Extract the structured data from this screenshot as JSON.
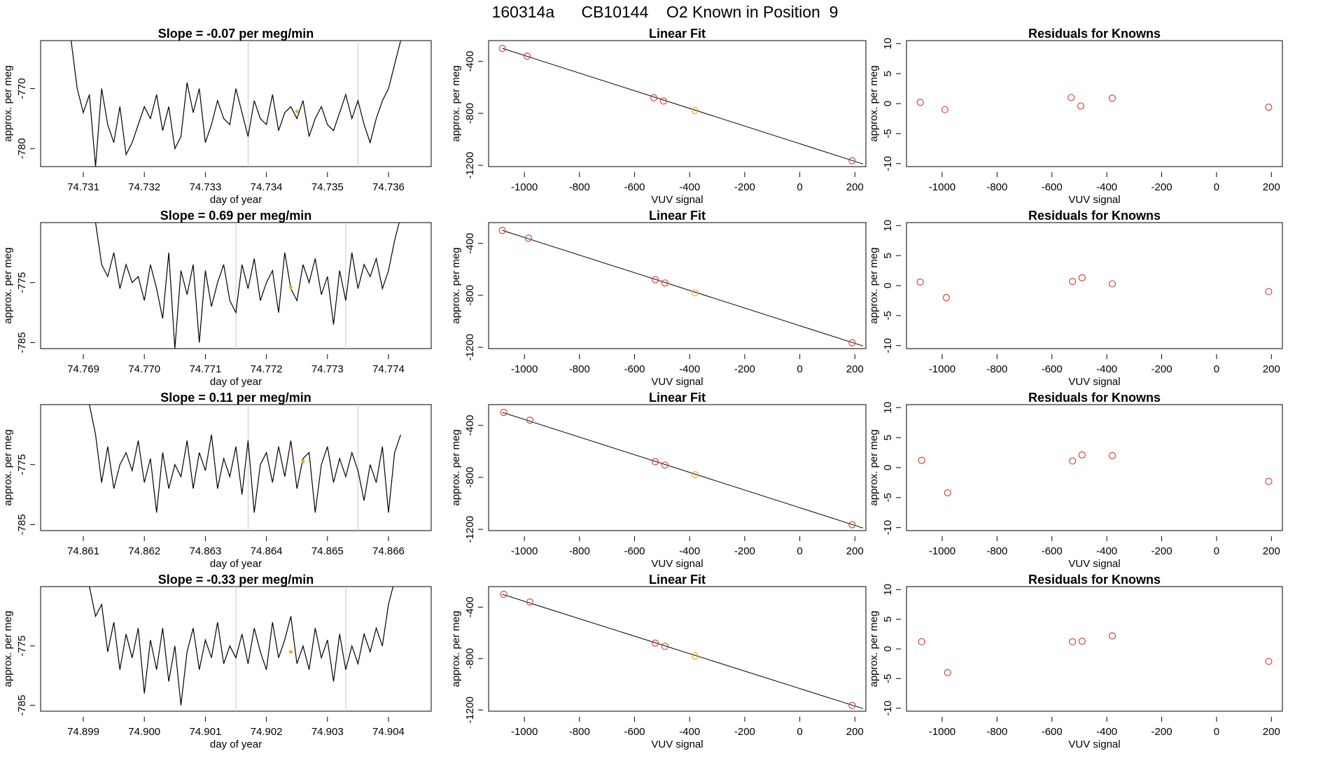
{
  "page": {
    "title": "160314a      CB10144    O2 Known in Position  9"
  },
  "colors": {
    "trace": "#000000",
    "gridline": "#c8c8c8",
    "known_point": "#d2473f",
    "sample_point": "#f5a623",
    "axis": "#000000"
  },
  "chart_data": [
    {
      "type": "line",
      "title": "Slope =  -0.07  per meg/min",
      "xlabel": "day of year",
      "ylabel": "approx. per meg",
      "xticks": [
        "74.731",
        "74.732",
        "74.733",
        "74.734",
        "74.735",
        "74.736"
      ],
      "xlim": [
        74.7303,
        74.7367
      ],
      "yticks": [
        "-770",
        "-780"
      ],
      "ylim": [
        -783,
        -762
      ],
      "window_start": 74.7337,
      "window_end": 74.7355,
      "marker": {
        "x": 74.7345,
        "y": -773.8
      },
      "x": [
        74.7308,
        74.7309,
        74.731,
        74.7311,
        74.7312,
        74.7313,
        74.7314,
        74.7315,
        74.7316,
        74.7317,
        74.7318,
        74.7319,
        74.732,
        74.7321,
        74.7322,
        74.7323,
        74.7324,
        74.7325,
        74.7326,
        74.7327,
        74.7328,
        74.7329,
        74.733,
        74.7331,
        74.7332,
        74.7333,
        74.7334,
        74.7335,
        74.7336,
        74.7337,
        74.7338,
        74.7339,
        74.734,
        74.7341,
        74.7342,
        74.7343,
        74.7344,
        74.7345,
        74.7346,
        74.7347,
        74.7348,
        74.7349,
        74.735,
        74.7351,
        74.7352,
        74.7353,
        74.7354,
        74.7355,
        74.7356,
        74.7357,
        74.7358,
        74.7359,
        74.736,
        74.7361,
        74.7362
      ],
      "y": [
        -762,
        -770,
        -774,
        -771,
        -783,
        -770,
        -776,
        -779,
        -773,
        -781,
        -779,
        -776,
        -773,
        -775,
        -771,
        -777,
        -773,
        -780,
        -778,
        -769,
        -774,
        -770,
        -779,
        -776,
        -772,
        -775,
        -776,
        -770,
        -774,
        -778,
        -772,
        -775,
        -776,
        -771,
        -777,
        -774,
        -773,
        -775,
        -772,
        -778,
        -775,
        -773,
        -776,
        -777,
        -774,
        -771,
        -775,
        -772,
        -776,
        -779,
        -775,
        -772,
        -770,
        -766,
        -762
      ]
    },
    {
      "type": "scatter",
      "title": "Linear Fit",
      "xlabel": "VUV signal",
      "ylabel": "approx. per meg",
      "xticks": [
        "-1000",
        "-800",
        "-600",
        "-400",
        "-200",
        "0",
        "200"
      ],
      "xlim": [
        -1130,
        240
      ],
      "yticks": [
        "-400",
        "-800",
        "-1200"
      ],
      "ylim": [
        -1210,
        -240
      ],
      "fit_line": [
        [
          -1080,
          -300
        ],
        [
          230,
          -1190
        ]
      ],
      "points": [
        {
          "x": -1080,
          "y": -300,
          "kind": "known"
        },
        {
          "x": -990,
          "y": -360,
          "kind": "known"
        },
        {
          "x": -530,
          "y": -680,
          "kind": "known"
        },
        {
          "x": -495,
          "y": -705,
          "kind": "known"
        },
        {
          "x": -380,
          "y": -780,
          "kind": "sample"
        },
        {
          "x": 190,
          "y": -1165,
          "kind": "known"
        }
      ]
    },
    {
      "type": "scatter",
      "title": "Residuals for Knowns",
      "xlabel": "VUV signal",
      "ylabel": "approx. per meg",
      "xticks": [
        "-1000",
        "-800",
        "-600",
        "-400",
        "-200",
        "0",
        "200"
      ],
      "xlim": [
        -1130,
        240
      ],
      "yticks": [
        "10",
        "5",
        "0",
        "-5",
        "-10"
      ],
      "ylim": [
        -10.5,
        10.5
      ],
      "points": [
        {
          "x": -1080,
          "y": 0.2
        },
        {
          "x": -990,
          "y": -1.0
        },
        {
          "x": -530,
          "y": 1.0
        },
        {
          "x": -495,
          "y": -0.4
        },
        {
          "x": -380,
          "y": 0.9
        },
        {
          "x": 190,
          "y": -0.6
        }
      ]
    },
    {
      "type": "line",
      "title": "Slope =  0.69  per meg/min",
      "xlabel": "day of year",
      "ylabel": "approx. per meg",
      "xticks": [
        "74.769",
        "74.770",
        "74.771",
        "74.772",
        "74.773",
        "74.774"
      ],
      "xlim": [
        74.7683,
        74.7747
      ],
      "yticks": [
        "-775",
        "-785"
      ],
      "ylim": [
        -786,
        -765
      ],
      "window_start": 74.7715,
      "window_end": 74.7733,
      "marker": {
        "x": 74.7724,
        "y": -775.8
      },
      "x": [
        74.7692,
        74.7693,
        74.7694,
        74.7695,
        74.7696,
        74.7697,
        74.7698,
        74.7699,
        74.77,
        74.7701,
        74.7702,
        74.7703,
        74.7704,
        74.7705,
        74.7706,
        74.7707,
        74.7708,
        74.7709,
        74.771,
        74.7711,
        74.7712,
        74.7713,
        74.7714,
        74.7715,
        74.7716,
        74.7717,
        74.7718,
        74.7719,
        74.772,
        74.7721,
        74.7722,
        74.7723,
        74.7724,
        74.7725,
        74.7726,
        74.7727,
        74.7728,
        74.7729,
        74.773,
        74.7731,
        74.7732,
        74.7733,
        74.7734,
        74.7735,
        74.7736,
        74.7737,
        74.7738,
        74.7739,
        74.774,
        74.7741,
        74.7742
      ],
      "y": [
        -765,
        -772,
        -774,
        -770,
        -776,
        -772,
        -775,
        -774,
        -778,
        -772,
        -776,
        -781,
        -770,
        -786,
        -773,
        -777,
        -772,
        -785,
        -773,
        -779,
        -775,
        -772,
        -778,
        -780,
        -772,
        -776,
        -771,
        -778,
        -775,
        -773,
        -780,
        -770,
        -776,
        -778,
        -772,
        -775,
        -771,
        -777,
        -774,
        -782,
        -773,
        -778,
        -770,
        -776,
        -772,
        -774,
        -771,
        -776,
        -773,
        -768,
        -764
      ]
    },
    {
      "type": "scatter",
      "title": "Linear Fit",
      "xlabel": "VUV signal",
      "ylabel": "approx. per meg",
      "xticks": [
        "-1000",
        "-800",
        "-600",
        "-400",
        "-200",
        "0",
        "200"
      ],
      "xlim": [
        -1130,
        240
      ],
      "yticks": [
        "-400",
        "-800",
        "-1200"
      ],
      "ylim": [
        -1210,
        -240
      ],
      "fit_line": [
        [
          -1080,
          -300
        ],
        [
          230,
          -1190
        ]
      ],
      "points": [
        {
          "x": -1080,
          "y": -300,
          "kind": "known"
        },
        {
          "x": -985,
          "y": -360,
          "kind": "known"
        },
        {
          "x": -525,
          "y": -680,
          "kind": "known"
        },
        {
          "x": -490,
          "y": -705,
          "kind": "known"
        },
        {
          "x": -380,
          "y": -780,
          "kind": "sample"
        },
        {
          "x": 190,
          "y": -1165,
          "kind": "known"
        }
      ]
    },
    {
      "type": "scatter",
      "title": "Residuals for Knowns",
      "xlabel": "VUV signal",
      "ylabel": "approx. per meg",
      "xticks": [
        "-1000",
        "-800",
        "-600",
        "-400",
        "-200",
        "0",
        "200"
      ],
      "xlim": [
        -1130,
        240
      ],
      "yticks": [
        "10",
        "5",
        "0",
        "-5",
        "-10"
      ],
      "ylim": [
        -10.5,
        10.5
      ],
      "points": [
        {
          "x": -1080,
          "y": 0.6
        },
        {
          "x": -985,
          "y": -2.0
        },
        {
          "x": -525,
          "y": 0.7
        },
        {
          "x": -490,
          "y": 1.3
        },
        {
          "x": -380,
          "y": 0.3
        },
        {
          "x": 190,
          "y": -1.0
        }
      ]
    },
    {
      "type": "line",
      "title": "Slope =  0.11  per meg/min",
      "xlabel": "day of year",
      "ylabel": "approx. per meg",
      "xticks": [
        "74.861",
        "74.862",
        "74.863",
        "74.864",
        "74.865",
        "74.866"
      ],
      "xlim": [
        74.8603,
        74.8667
      ],
      "yticks": [
        "-775",
        "-785"
      ],
      "ylim": [
        -786,
        -765
      ],
      "window_start": 74.8637,
      "window_end": 74.8655,
      "marker": {
        "x": 74.8646,
        "y": -774.5
      },
      "x": [
        74.8611,
        74.8612,
        74.8613,
        74.8614,
        74.8615,
        74.8616,
        74.8617,
        74.8618,
        74.8619,
        74.862,
        74.8621,
        74.8622,
        74.8623,
        74.8624,
        74.8625,
        74.8626,
        74.8627,
        74.8628,
        74.8629,
        74.863,
        74.8631,
        74.8632,
        74.8633,
        74.8634,
        74.8635,
        74.8636,
        74.8637,
        74.8638,
        74.8639,
        74.864,
        74.8641,
        74.8642,
        74.8643,
        74.8644,
        74.8645,
        74.8646,
        74.8647,
        74.8648,
        74.8649,
        74.865,
        74.8651,
        74.8652,
        74.8653,
        74.8654,
        74.8655,
        74.8656,
        74.8657,
        74.8658,
        74.8659,
        74.866,
        74.8661,
        74.8662
      ],
      "y": [
        -765,
        -770,
        -778,
        -772,
        -779,
        -775,
        -773,
        -776,
        -771,
        -778,
        -774,
        -783,
        -773,
        -779,
        -775,
        -777,
        -771,
        -779,
        -773,
        -776,
        -770,
        -779,
        -774,
        -777,
        -772,
        -780,
        -771,
        -783,
        -775,
        -773,
        -778,
        -772,
        -777,
        -771,
        -779,
        -774,
        -773,
        -783,
        -775,
        -772,
        -778,
        -774,
        -777,
        -773,
        -776,
        -781,
        -775,
        -778,
        -772,
        -783,
        -773,
        -770
      ]
    },
    {
      "type": "scatter",
      "title": "Linear Fit",
      "xlabel": "VUV signal",
      "ylabel": "approx. per meg",
      "xticks": [
        "-1000",
        "-800",
        "-600",
        "-400",
        "-200",
        "0",
        "200"
      ],
      "xlim": [
        -1130,
        240
      ],
      "yticks": [
        "-400",
        "-800",
        "-1200"
      ],
      "ylim": [
        -1210,
        -240
      ],
      "fit_line": [
        [
          -1080,
          -300
        ],
        [
          230,
          -1190
        ]
      ],
      "points": [
        {
          "x": -1075,
          "y": -300,
          "kind": "known"
        },
        {
          "x": -980,
          "y": -360,
          "kind": "known"
        },
        {
          "x": -525,
          "y": -680,
          "kind": "known"
        },
        {
          "x": -490,
          "y": -705,
          "kind": "known"
        },
        {
          "x": -380,
          "y": -780,
          "kind": "sample"
        },
        {
          "x": 190,
          "y": -1165,
          "kind": "known"
        }
      ]
    },
    {
      "type": "scatter",
      "title": "Residuals for Knowns",
      "xlabel": "VUV signal",
      "ylabel": "approx. per meg",
      "xticks": [
        "-1000",
        "-800",
        "-600",
        "-400",
        "-200",
        "0",
        "200"
      ],
      "xlim": [
        -1130,
        240
      ],
      "yticks": [
        "10",
        "5",
        "0",
        "-5",
        "-10"
      ],
      "ylim": [
        -10.5,
        10.5
      ],
      "points": [
        {
          "x": -1075,
          "y": 1.2
        },
        {
          "x": -980,
          "y": -4.2
        },
        {
          "x": -525,
          "y": 1.1
        },
        {
          "x": -490,
          "y": 2.1
        },
        {
          "x": -380,
          "y": 2.0
        },
        {
          "x": 190,
          "y": -2.3
        }
      ]
    },
    {
      "type": "line",
      "title": "Slope =  -0.33  per meg/min",
      "xlabel": "day of year",
      "ylabel": "approx. per meg",
      "xticks": [
        "74.899",
        "74.900",
        "74.901",
        "74.902",
        "74.903",
        "74.904"
      ],
      "xlim": [
        74.8983,
        74.9047
      ],
      "yticks": [
        "-775",
        "-785"
      ],
      "ylim": [
        -786,
        -765
      ],
      "window_start": 74.9015,
      "window_end": 74.9033,
      "marker": {
        "x": 74.9024,
        "y": -776.0
      },
      "x": [
        74.8991,
        74.8992,
        74.8993,
        74.8994,
        74.8995,
        74.8996,
        74.8997,
        74.8998,
        74.8999,
        74.9,
        74.9001,
        74.9002,
        74.9003,
        74.9004,
        74.9005,
        74.9006,
        74.9007,
        74.9008,
        74.9009,
        74.901,
        74.9011,
        74.9012,
        74.9013,
        74.9014,
        74.9015,
        74.9016,
        74.9017,
        74.9018,
        74.9019,
        74.902,
        74.9021,
        74.9022,
        74.9023,
        74.9024,
        74.9025,
        74.9026,
        74.9027,
        74.9028,
        74.9029,
        74.903,
        74.9031,
        74.9032,
        74.9033,
        74.9034,
        74.9035,
        74.9036,
        74.9037,
        74.9038,
        74.9039,
        74.904,
        74.9041
      ],
      "y": [
        -765,
        -770,
        -768,
        -776,
        -771,
        -779,
        -773,
        -777,
        -772,
        -783,
        -774,
        -779,
        -772,
        -781,
        -775,
        -785,
        -776,
        -772,
        -779,
        -774,
        -777,
        -771,
        -778,
        -775,
        -777,
        -773,
        -778,
        -772,
        -776,
        -779,
        -771,
        -777,
        -774,
        -770,
        -778,
        -775,
        -779,
        -772,
        -777,
        -774,
        -781,
        -773,
        -779,
        -775,
        -778,
        -773,
        -776,
        -772,
        -775,
        -768,
        -764
      ]
    },
    {
      "type": "scatter",
      "title": "Linear Fit",
      "xlabel": "VUV signal",
      "ylabel": "approx. per meg",
      "xticks": [
        "-1000",
        "-800",
        "-600",
        "-400",
        "-200",
        "0",
        "200"
      ],
      "xlim": [
        -1130,
        240
      ],
      "yticks": [
        "-400",
        "-800",
        "-1200"
      ],
      "ylim": [
        -1210,
        -240
      ],
      "fit_line": [
        [
          -1080,
          -300
        ],
        [
          230,
          -1190
        ]
      ],
      "points": [
        {
          "x": -1075,
          "y": -300,
          "kind": "known"
        },
        {
          "x": -980,
          "y": -360,
          "kind": "known"
        },
        {
          "x": -525,
          "y": -680,
          "kind": "known"
        },
        {
          "x": -490,
          "y": -705,
          "kind": "known"
        },
        {
          "x": -380,
          "y": -780,
          "kind": "sample"
        },
        {
          "x": 190,
          "y": -1165,
          "kind": "known"
        }
      ]
    },
    {
      "type": "scatter",
      "title": "Residuals for Knowns",
      "xlabel": "VUV signal",
      "ylabel": "approx. per meg",
      "xticks": [
        "-1000",
        "-800",
        "-600",
        "-400",
        "-200",
        "0",
        "200"
      ],
      "xlim": [
        -1130,
        240
      ],
      "yticks": [
        "10",
        "5",
        "0",
        "-5",
        "-10"
      ],
      "ylim": [
        -10.5,
        10.5
      ],
      "points": [
        {
          "x": -1075,
          "y": 1.2
        },
        {
          "x": -980,
          "y": -4.0
        },
        {
          "x": -525,
          "y": 1.2
        },
        {
          "x": -490,
          "y": 1.3
        },
        {
          "x": -380,
          "y": 2.2
        },
        {
          "x": 190,
          "y": -2.1
        }
      ]
    }
  ]
}
